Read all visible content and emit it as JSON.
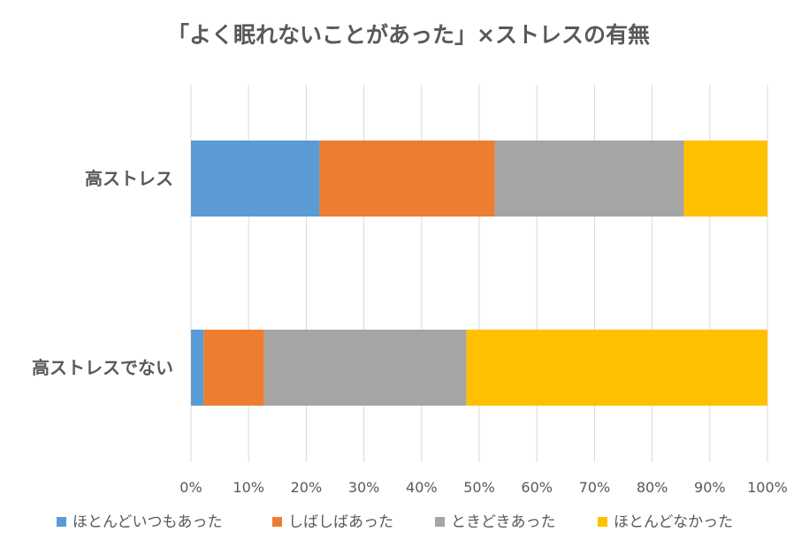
{
  "chart_data": {
    "type": "bar",
    "orientation": "horizontal",
    "stacked": "percent",
    "title": "「よく眠れないことがあった」×ストレスの有無",
    "categories": [
      "高ストレス",
      "高ストレスでない"
    ],
    "series": [
      {
        "name": "ほとんどいつもあった",
        "color": "#5b9bd5",
        "values": [
          22.3,
          2.2
        ]
      },
      {
        "name": "しばしばあった",
        "color": "#ed7d31",
        "values": [
          30.4,
          10.5
        ]
      },
      {
        "name": "ときどきあった",
        "color": "#a5a5a5",
        "values": [
          32.8,
          35.1
        ]
      },
      {
        "name": "ほとんどなかった",
        "color": "#ffc000",
        "values": [
          14.5,
          52.2
        ]
      }
    ],
    "xticks": [
      "0%",
      "10%",
      "20%",
      "30%",
      "40%",
      "50%",
      "60%",
      "70%",
      "80%",
      "90%",
      "100%"
    ],
    "xlim": [
      0,
      100
    ],
    "grid": true,
    "legend_position": "bottom"
  }
}
